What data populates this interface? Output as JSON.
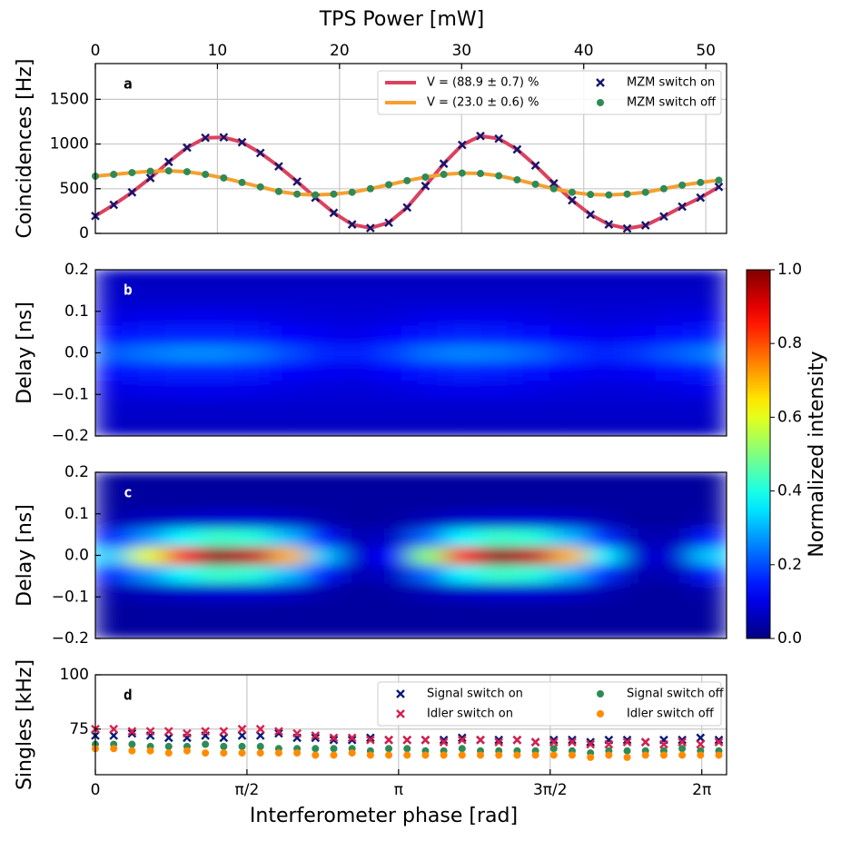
{
  "chart_data": [
    {
      "type": "scatter",
      "label": "a",
      "ylabel": "Coincidences [Hz]",
      "x2label": "TPS Power [mW]",
      "x": [
        0,
        0.19,
        0.38,
        0.57,
        0.76,
        0.95,
        1.14,
        1.33,
        1.52,
        1.71,
        1.9,
        2.09,
        2.28,
        2.47,
        2.66,
        2.85,
        3.04,
        3.23,
        3.42,
        3.61,
        3.8,
        3.99,
        4.18,
        4.37,
        4.56,
        4.75,
        4.94,
        5.13,
        5.32,
        5.51,
        5.7,
        5.89,
        6.08,
        6.27,
        6.46
      ],
      "xlim": [
        0,
        6.54
      ],
      "x2lim": [
        0,
        51.7
      ],
      "x2ticks": [
        0,
        10,
        20,
        30,
        40,
        50
      ],
      "ylim": [
        0,
        1900
      ],
      "yticks": [
        0,
        500,
        1000,
        1500
      ],
      "grid": true,
      "legend": "upper right",
      "series": [
        {
          "name": "V = (88.9 ± 0.7) %",
          "color": "#d9435f",
          "style": "line",
          "values": [
            195,
            320,
            460,
            620,
            800,
            960,
            1070,
            1075,
            1020,
            900,
            750,
            580,
            400,
            230,
            100,
            60,
            120,
            290,
            530,
            780,
            990,
            1090,
            1060,
            940,
            760,
            560,
            370,
            210,
            100,
            55,
            90,
            190,
            300,
            400,
            520
          ]
        },
        {
          "name": "V = (23.0 ± 0.6) %",
          "color": "#f5a030",
          "style": "line",
          "values": [
            640,
            660,
            680,
            695,
            700,
            690,
            660,
            620,
            570,
            520,
            470,
            440,
            430,
            440,
            460,
            500,
            545,
            590,
            630,
            660,
            675,
            670,
            645,
            600,
            550,
            500,
            460,
            435,
            430,
            440,
            460,
            500,
            540,
            570,
            595
          ]
        },
        {
          "name": "MZM switch on",
          "color": "#14146e",
          "style": "x",
          "values": [
            195,
            320,
            460,
            620,
            800,
            960,
            1070,
            1075,
            1020,
            900,
            750,
            580,
            400,
            230,
            100,
            60,
            120,
            290,
            530,
            780,
            990,
            1090,
            1060,
            940,
            760,
            560,
            370,
            210,
            100,
            55,
            90,
            190,
            300,
            400,
            520
          ]
        },
        {
          "name": "MZM switch off",
          "color": "#2e8b57",
          "style": "circle",
          "values": [
            640,
            660,
            680,
            695,
            700,
            690,
            660,
            620,
            570,
            520,
            470,
            440,
            430,
            440,
            460,
            500,
            545,
            590,
            630,
            660,
            675,
            670,
            645,
            600,
            550,
            500,
            460,
            435,
            430,
            440,
            460,
            500,
            540,
            570,
            595
          ]
        }
      ]
    },
    {
      "type": "heatmap",
      "label": "b",
      "ylabel": "Delay [ns]",
      "colormap": "jet",
      "x": [
        0.18,
        0.55,
        0.91,
        1.27,
        1.63,
        2.0,
        2.36,
        2.72,
        3.09,
        3.45,
        3.81,
        4.18,
        4.54,
        4.9,
        5.27,
        5.63,
        5.99,
        6.36
      ],
      "y": [
        -0.178,
        -0.133,
        -0.089,
        -0.044,
        0,
        0.044,
        0.089,
        0.133,
        0.178
      ],
      "xlim": [
        0,
        6.54
      ],
      "ylim": [
        -0.2,
        0.2
      ],
      "yticks": [
        {
          "value": -0.2,
          "label": "−0.2"
        },
        {
          "value": -0.1,
          "label": "−0.1"
        },
        {
          "value": 0,
          "label": "0.0"
        },
        0.1,
        0.2
      ],
      "z": [
        [
          0.065,
          0.065,
          0.065,
          0.065,
          0.065,
          0.065,
          0.065,
          0.065,
          0.065,
          0.065,
          0.065,
          0.065,
          0.065,
          0.065,
          0.065,
          0.065,
          0.065,
          0.065
        ],
        [
          0.075,
          0.075,
          0.075,
          0.075,
          0.075,
          0.075,
          0.075,
          0.075,
          0.075,
          0.075,
          0.075,
          0.075,
          0.075,
          0.075,
          0.075,
          0.075,
          0.075,
          0.075
        ],
        [
          0.097,
          0.102,
          0.105,
          0.105,
          0.102,
          0.095,
          0.089,
          0.087,
          0.093,
          0.101,
          0.104,
          0.103,
          0.099,
          0.092,
          0.088,
          0.091,
          0.097,
          0.103
        ],
        [
          0.136,
          0.151,
          0.16,
          0.16,
          0.151,
          0.13,
          0.112,
          0.106,
          0.124,
          0.148,
          0.157,
          0.154,
          0.142,
          0.121,
          0.109,
          0.118,
          0.136,
          0.154
        ],
        [
          0.212,
          0.242,
          0.26,
          0.26,
          0.242,
          0.2,
          0.164,
          0.152,
          0.188,
          0.236,
          0.254,
          0.248,
          0.224,
          0.182,
          0.158,
          0.176,
          0.212,
          0.248
        ],
        [
          0.136,
          0.151,
          0.16,
          0.16,
          0.151,
          0.13,
          0.112,
          0.106,
          0.124,
          0.148,
          0.157,
          0.154,
          0.142,
          0.121,
          0.109,
          0.118,
          0.136,
          0.154
        ],
        [
          0.097,
          0.102,
          0.105,
          0.105,
          0.102,
          0.095,
          0.089,
          0.087,
          0.093,
          0.101,
          0.104,
          0.103,
          0.099,
          0.092,
          0.088,
          0.091,
          0.097,
          0.103
        ],
        [
          0.075,
          0.075,
          0.075,
          0.075,
          0.075,
          0.075,
          0.075,
          0.075,
          0.075,
          0.075,
          0.075,
          0.075,
          0.075,
          0.075,
          0.075,
          0.075,
          0.075,
          0.075
        ],
        [
          0.065,
          0.065,
          0.065,
          0.065,
          0.065,
          0.065,
          0.065,
          0.065,
          0.065,
          0.065,
          0.065,
          0.065,
          0.065,
          0.065,
          0.065,
          0.065,
          0.065,
          0.065
        ]
      ]
    },
    {
      "type": "heatmap",
      "label": "c",
      "ylabel": "Delay [ns]",
      "colormap": "jet",
      "x": [
        0.18,
        0.55,
        0.91,
        1.27,
        1.63,
        2.0,
        2.36,
        2.72,
        3.09,
        3.45,
        3.81,
        4.18,
        4.54,
        4.9,
        5.27,
        5.63,
        5.99,
        6.36
      ],
      "y": [
        -0.178,
        -0.133,
        -0.089,
        -0.044,
        0,
        0.044,
        0.089,
        0.133,
        0.178
      ],
      "xlim": [
        0,
        6.54
      ],
      "ylim": [
        -0.2,
        0.2
      ],
      "yticks": [
        {
          "value": -0.2,
          "label": "−0.2"
        },
        {
          "value": -0.1,
          "label": "−0.1"
        },
        {
          "value": 0,
          "label": "0.0"
        },
        0.1,
        0.2
      ],
      "z": [
        [
          0.03,
          0.03,
          0.03,
          0.03,
          0.03,
          0.03,
          0.03,
          0.03,
          0.03,
          0.03,
          0.03,
          0.03,
          0.03,
          0.03,
          0.03,
          0.03,
          0.03,
          0.03
        ],
        [
          0.03,
          0.03,
          0.03,
          0.03,
          0.03,
          0.03,
          0.03,
          0.03,
          0.03,
          0.03,
          0.03,
          0.03,
          0.03,
          0.03,
          0.03,
          0.03,
          0.03,
          0.03
        ],
        [
          0.045,
          0.06,
          0.07,
          0.08,
          0.08,
          0.07,
          0.045,
          0.03,
          0.035,
          0.055,
          0.07,
          0.08,
          0.08,
          0.07,
          0.05,
          0.03,
          0.03,
          0.045
        ],
        [
          0.15,
          0.27,
          0.37,
          0.43,
          0.41,
          0.31,
          0.15,
          0.05,
          0.07,
          0.23,
          0.37,
          0.43,
          0.41,
          0.31,
          0.17,
          0.05,
          0.05,
          0.15
        ],
        [
          0.32,
          0.6,
          0.84,
          0.98,
          0.93,
          0.7,
          0.32,
          0.08,
          0.13,
          0.51,
          0.84,
          0.98,
          0.93,
          0.7,
          0.36,
          0.08,
          0.08,
          0.32
        ],
        [
          0.15,
          0.27,
          0.37,
          0.43,
          0.41,
          0.31,
          0.15,
          0.05,
          0.07,
          0.23,
          0.37,
          0.43,
          0.41,
          0.31,
          0.17,
          0.05,
          0.05,
          0.15
        ],
        [
          0.045,
          0.06,
          0.07,
          0.08,
          0.08,
          0.07,
          0.045,
          0.03,
          0.035,
          0.055,
          0.07,
          0.08,
          0.08,
          0.07,
          0.05,
          0.03,
          0.03,
          0.045
        ],
        [
          0.03,
          0.03,
          0.03,
          0.03,
          0.03,
          0.03,
          0.03,
          0.03,
          0.03,
          0.03,
          0.03,
          0.03,
          0.03,
          0.03,
          0.03,
          0.03,
          0.03,
          0.03
        ],
        [
          0.03,
          0.03,
          0.03,
          0.03,
          0.03,
          0.03,
          0.03,
          0.03,
          0.03,
          0.03,
          0.03,
          0.03,
          0.03,
          0.03,
          0.03,
          0.03,
          0.03,
          0.03
        ]
      ]
    },
    {
      "type": "scatter",
      "label": "d",
      "ylabel": "Singles [kHz]",
      "xlabel": "Interferometer phase [rad]",
      "x": [
        0,
        0.19,
        0.38,
        0.57,
        0.76,
        0.95,
        1.14,
        1.33,
        1.52,
        1.71,
        1.9,
        2.09,
        2.28,
        2.47,
        2.66,
        2.85,
        3.04,
        3.23,
        3.42,
        3.61,
        3.8,
        3.99,
        4.18,
        4.37,
        4.56,
        4.75,
        4.94,
        5.13,
        5.32,
        5.51,
        5.7,
        5.89,
        6.08,
        6.27,
        6.46
      ],
      "xlim": [
        0,
        6.54
      ],
      "xticks": [
        0,
        {
          "value": 1.5708,
          "label": "π/2"
        },
        {
          "value": 3.1416,
          "label": "π"
        },
        {
          "value": 4.7124,
          "label": "3π/2"
        },
        {
          "value": 6.2832,
          "label": "2π"
        }
      ],
      "ylim": [
        54,
        100
      ],
      "yticks": [
        75,
        100
      ],
      "grid": true,
      "legend": "upper right",
      "series": [
        {
          "name": "Signal switch on",
          "color": "#0b1a78",
          "style": "x",
          "values": [
            72,
            72,
            73,
            72,
            71,
            71,
            72,
            71,
            72,
            72,
            73,
            71,
            71,
            70,
            70,
            71,
            70,
            70,
            70,
            70,
            71,
            70,
            70,
            70,
            69,
            70,
            70,
            69,
            70,
            70,
            69,
            70,
            70,
            71,
            70
          ]
        },
        {
          "name": "Idler switch on",
          "color": "#d6204b",
          "style": "x",
          "values": [
            75,
            75,
            74,
            74,
            74,
            73,
            74,
            74,
            75,
            75,
            74,
            73,
            72,
            71,
            71,
            70,
            70,
            70,
            70,
            69,
            70,
            70,
            69,
            70,
            69,
            69,
            69,
            68,
            68,
            69,
            69,
            68,
            69,
            68,
            69
          ]
        },
        {
          "name": "Signal switch off",
          "color": "#2e8b57",
          "style": "circle",
          "values": [
            68,
            68,
            68,
            67,
            67,
            67,
            68,
            67,
            67,
            67,
            66,
            66,
            66,
            66,
            66,
            65,
            66,
            66,
            65,
            65,
            66,
            65,
            65,
            65,
            65,
            66,
            65,
            64,
            65,
            65,
            65,
            65,
            66,
            65,
            65
          ]
        },
        {
          "name": "Idler switch off",
          "color": "#ff8c00",
          "style": "circle",
          "values": [
            66,
            66,
            65,
            65,
            64,
            65,
            64,
            64,
            64,
            64,
            64,
            64,
            63,
            63,
            64,
            63,
            63,
            63,
            63,
            63,
            63,
            63,
            63,
            63,
            63,
            63,
            63,
            62,
            63,
            62,
            63,
            63,
            63,
            63,
            63
          ]
        }
      ]
    },
    {
      "type": "colorbar",
      "colormap": "jet",
      "label": "Normalized intensity",
      "ylim": [
        0,
        1
      ],
      "yticks": [
        {
          "value": 0,
          "label": "0.0"
        },
        0.2,
        0.4,
        0.6,
        0.8,
        {
          "value": 1,
          "label": "1.0"
        }
      ]
    }
  ]
}
